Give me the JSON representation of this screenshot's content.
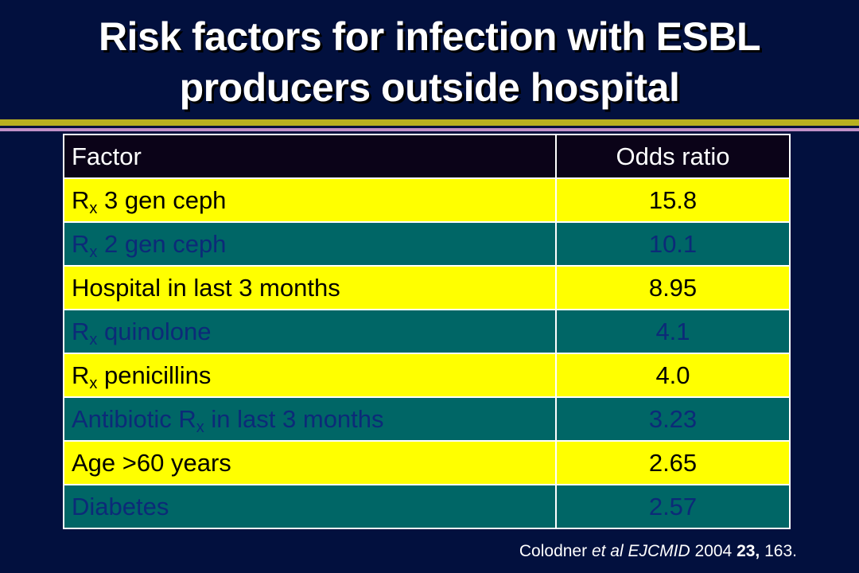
{
  "slide": {
    "title_line1": "Risk factors for infection with ESBL",
    "title_line2": "producers outside hospital"
  },
  "table": {
    "headers": {
      "factor": "Factor",
      "odds": "Odds ratio"
    },
    "rows": [
      {
        "factor": "3 gen ceph",
        "odds": "15.8",
        "prefix": "R",
        "sub": "x",
        "suffix": ""
      },
      {
        "factor": "2 gen ceph",
        "odds": "10.1",
        "prefix": "R",
        "sub": "x",
        "suffix": ""
      },
      {
        "factor": "Hospital in last 3 months",
        "odds": "8.95"
      },
      {
        "factor": "quinolone",
        "odds": "4.1",
        "prefix": "R",
        "sub": "x",
        "suffix": ""
      },
      {
        "factor": "penicillins",
        "odds": "4.0",
        "prefix": "R",
        "sub": "x",
        "suffix": ""
      },
      {
        "factor": "in last 3 months",
        "odds": "3.23",
        "prefix": "Antibiotic R",
        "sub": "x",
        "suffix": ""
      },
      {
        "factor": "Age >60 years",
        "odds": "2.65"
      },
      {
        "factor": "Diabetes",
        "odds": "2.57"
      }
    ],
    "colors": {
      "yellow_row": "#ffff00",
      "teal_row": "#006666",
      "teal_text": "#0c2a78",
      "header_bg": "#0b0318"
    }
  },
  "citation": {
    "authors": "Colodner",
    "etal": "et al",
    "journal": "EJCMID",
    "year": "2004",
    "volume": "23,",
    "pages": "163."
  },
  "colors": {
    "background": "#02103e",
    "rule_olive": "#b8b020",
    "rule_purple": "#c090c8"
  }
}
